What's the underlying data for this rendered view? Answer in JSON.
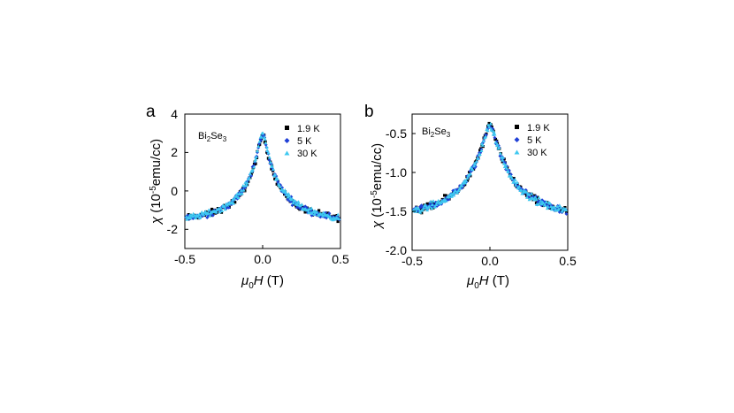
{
  "chart_data": [
    {
      "type": "scatter",
      "panel_label": "a",
      "sample_label": {
        "base": "Bi",
        "sub1": "2",
        "mid": "Se",
        "sub2": "3"
      },
      "xlabel": {
        "symbol": "μ",
        "sub": "0",
        "var": "H",
        "unit": " (T)"
      },
      "ylabel": {
        "symbol": "χ",
        "pre": " (10",
        "exp": "-5",
        "post": "emu/cc)"
      },
      "xlim": [
        -0.5,
        0.5
      ],
      "ylim": [
        -3,
        4
      ],
      "xticks": [
        -0.5,
        0.0,
        0.5
      ],
      "xtick_labels": [
        "-0.5",
        "0.0",
        "0.5"
      ],
      "yticks": [
        -2,
        0,
        2,
        4
      ],
      "ytick_labels": [
        "-2",
        "0",
        "2",
        "4"
      ],
      "grid": false,
      "legend_position": "top-right",
      "model": {
        "peak": 2.95,
        "background": -1.85,
        "width": 0.09
      },
      "series": [
        {
          "name": "1.9 K",
          "marker": "square",
          "color": "#000000",
          "offset": 0.0,
          "noise": 0.14
        },
        {
          "name": "5 K",
          "marker": "diamond",
          "color": "#1f3fd6",
          "offset": 0.05,
          "noise": 0.14
        },
        {
          "name": "30 K",
          "marker": "triangle",
          "color": "#3ec8f0",
          "offset": 0.1,
          "noise": 0.13
        }
      ]
    },
    {
      "type": "scatter",
      "panel_label": "b",
      "sample_label": {
        "base": "Bi",
        "sub1": "2",
        "mid": "Se",
        "sub2": "3"
      },
      "xlabel": {
        "symbol": "μ",
        "sub": "0",
        "var": "H",
        "unit": " (T)"
      },
      "ylabel": {
        "symbol": "χ",
        "pre": " (10",
        "exp": "-5",
        "post": "emu/cc)"
      },
      "xlim": [
        -0.5,
        0.5
      ],
      "ylim": [
        -2.0,
        -0.25
      ],
      "xticks": [
        -0.5,
        0.0,
        0.5
      ],
      "xtick_labels": [
        "-0.5",
        "0.0",
        "0.5"
      ],
      "yticks": [
        -2.0,
        -1.5,
        -1.0,
        -0.5
      ],
      "ytick_labels": [
        "-2.0",
        "-1.5",
        "-1.0",
        "-0.5"
      ],
      "grid": false,
      "legend_position": "top-right",
      "model": {
        "peak": -0.38,
        "background": -1.68,
        "width": 0.13
      },
      "series": [
        {
          "name": "1.9 K",
          "marker": "square",
          "color": "#000000",
          "offset": 0.0,
          "noise": 0.04
        },
        {
          "name": "5 K",
          "marker": "diamond",
          "color": "#1f3fd6",
          "offset": 0.0,
          "noise": 0.04
        },
        {
          "name": "30 K",
          "marker": "triangle",
          "color": "#3ec8f0",
          "offset": 0.0,
          "noise": 0.04
        }
      ]
    }
  ]
}
